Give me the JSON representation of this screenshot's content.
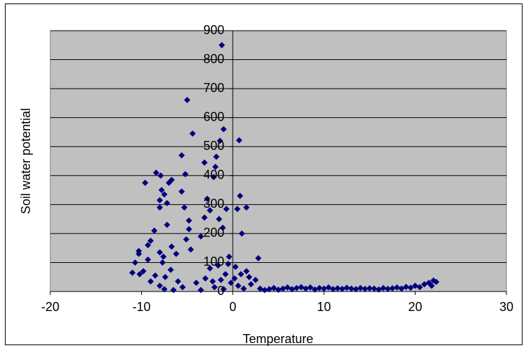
{
  "chart_data": {
    "type": "scatter",
    "xlabel": "Temperature",
    "ylabel": "Soil water potential",
    "x": [
      -1.2,
      -5.0,
      -4.4,
      -1.0,
      -1.4,
      0.7,
      -5.6,
      -1.8,
      -3.1,
      -1.9,
      -8.4,
      -7.9,
      -5.2,
      -2.1,
      -6.7,
      -7.0,
      -9.6,
      -7.8,
      -5.6,
      -7.5,
      0.8,
      -2.8,
      -8.0,
      -7.2,
      -8.0,
      1.5,
      -5.3,
      0.5,
      -0.7,
      -2.5,
      -3.1,
      -1.5,
      -4.8,
      -7.2,
      -1.1,
      -4.8,
      -8.6,
      1.0,
      -3.5,
      -5.1,
      -9.0,
      -9.3,
      -6.7,
      -4.6,
      -10.3,
      -8.0,
      -6.2,
      -10.3,
      -7.6,
      -0.4,
      2.8,
      -9.3,
      -7.7,
      -10.7,
      -0.5,
      -1.6,
      0.3,
      -2.5,
      -6.8,
      -9.8,
      -11.0,
      -10.2,
      -8.5,
      -7.4,
      -3.0,
      0.9,
      1.8,
      -1.3,
      -6.0,
      -9.0,
      -4.0,
      -0.2,
      2.0,
      -8.0,
      -5.5,
      -2.0,
      0.6,
      -7.5,
      -6.5,
      -3.5,
      -1.0,
      1.2,
      3.0,
      3.5,
      4.0,
      4.5,
      5.0,
      5.5,
      6.0,
      6.5,
      7.0,
      7.5,
      8.0,
      8.5,
      9.0,
      9.5,
      10.0,
      10.5,
      11.0,
      11.5,
      12.0,
      12.5,
      13.0,
      13.5,
      14.0,
      14.5,
      15.0,
      15.5,
      16.0,
      16.5,
      17.0,
      17.5,
      18.0,
      18.5,
      19.0,
      19.5,
      20.0,
      20.5,
      21.0,
      21.5,
      21.8,
      22.0,
      22.3,
      2.5,
      1.5,
      -0.8,
      -2.2,
      0.2
    ],
    "values": [
      850,
      661,
      545,
      560,
      520,
      522,
      470,
      465,
      445,
      430,
      410,
      400,
      405,
      395,
      385,
      375,
      375,
      350,
      345,
      335,
      330,
      320,
      315,
      305,
      290,
      290,
      290,
      285,
      285,
      280,
      255,
      250,
      245,
      230,
      220,
      215,
      210,
      200,
      190,
      180,
      175,
      160,
      155,
      145,
      140,
      135,
      130,
      130,
      120,
      120,
      115,
      110,
      100,
      100,
      95,
      90,
      85,
      80,
      75,
      70,
      65,
      60,
      55,
      50,
      45,
      60,
      50,
      40,
      35,
      35,
      30,
      30,
      25,
      20,
      15,
      15,
      20,
      8,
      5,
      5,
      8,
      10,
      10,
      5,
      8,
      12,
      6,
      10,
      14,
      8,
      12,
      15,
      10,
      14,
      7,
      12,
      10,
      14,
      8,
      11,
      9,
      13,
      10,
      8,
      12,
      9,
      11,
      10,
      7,
      12,
      9,
      11,
      14,
      10,
      16,
      13,
      20,
      15,
      25,
      30,
      20,
      38,
      33,
      40,
      70,
      60,
      35,
      45
    ],
    "color": "#000080",
    "xlim": [
      -20,
      30
    ],
    "xticks": [
      -20,
      -10,
      0,
      10,
      20,
      30
    ],
    "ylim": [
      0,
      900
    ],
    "yticks": [
      0,
      100,
      200,
      300,
      400,
      500,
      600,
      700,
      800,
      900
    ],
    "grid": true,
    "plot_background": "#c0c0c0"
  }
}
